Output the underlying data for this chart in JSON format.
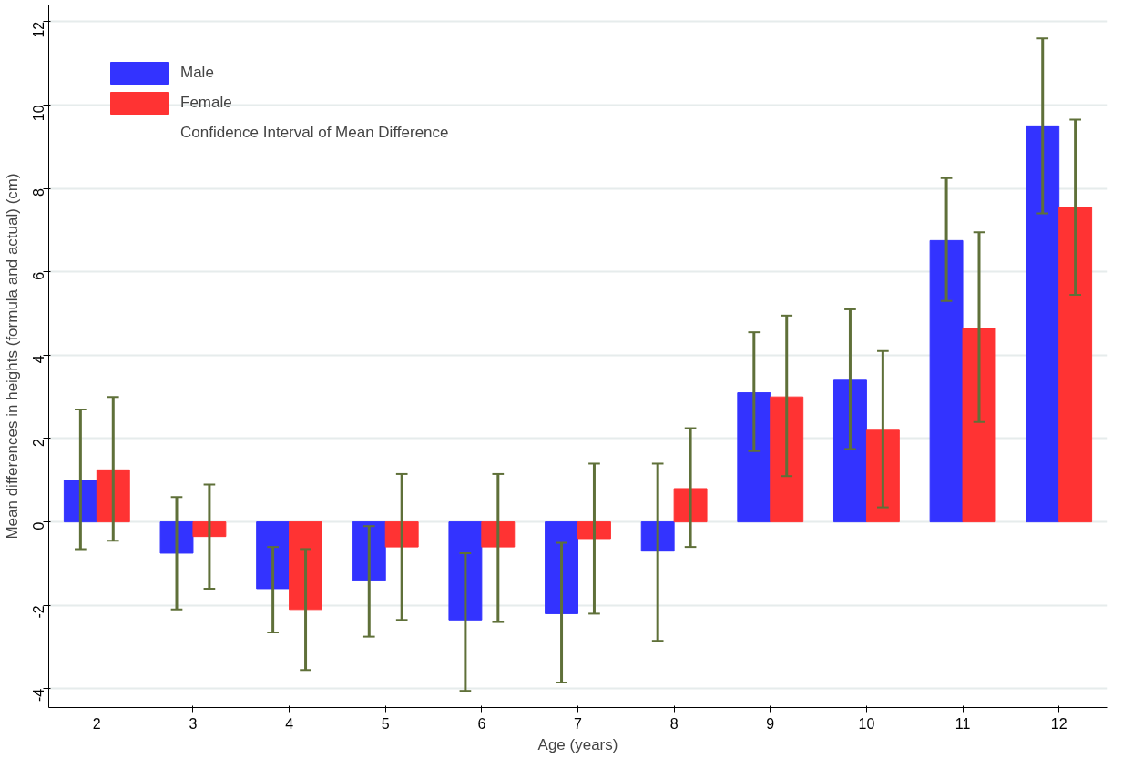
{
  "chart_data": {
    "type": "bar",
    "xlabel": "Age (years)",
    "ylabel": "Mean differences in heights (formula and actual) (cm)",
    "categories": [
      "2",
      "3",
      "4",
      "5",
      "6",
      "7",
      "8",
      "9",
      "10",
      "11",
      "12"
    ],
    "ylim": [
      -4.45,
      12.4
    ],
    "yticks": [
      -4,
      -2,
      0,
      2,
      4,
      6,
      8,
      10,
      12
    ],
    "grid": "y",
    "legend": "top left",
    "annotations": [
      "Confidence Interval of Mean Difference"
    ],
    "series": [
      {
        "name": "Male",
        "color": "#3333ff",
        "values": [
          1.0,
          -0.75,
          -1.6,
          -1.4,
          -2.35,
          -2.2,
          -0.7,
          3.1,
          3.4,
          6.75,
          9.5
        ],
        "errors": [
          [
            -0.65,
            2.7
          ],
          [
            -2.1,
            0.6
          ],
          [
            -2.65,
            -0.6
          ],
          [
            -2.75,
            -0.1
          ],
          [
            -4.05,
            -0.75
          ],
          [
            -3.85,
            -0.5
          ],
          [
            -2.85,
            1.4
          ],
          [
            1.7,
            4.55
          ],
          [
            1.75,
            5.1
          ],
          [
            5.3,
            8.25
          ],
          [
            7.4,
            11.6
          ]
        ]
      },
      {
        "name": "Female",
        "color": "#ff3333",
        "values": [
          1.25,
          -0.35,
          -2.1,
          -0.6,
          -0.6,
          -0.4,
          0.8,
          3.0,
          2.2,
          4.65,
          7.55
        ],
        "errors": [
          [
            -0.45,
            3.0
          ],
          [
            -1.6,
            0.9
          ],
          [
            -3.55,
            -0.65
          ],
          [
            -2.35,
            1.15
          ],
          [
            -2.4,
            1.15
          ],
          [
            -2.2,
            1.4
          ],
          [
            -0.6,
            2.25
          ],
          [
            1.1,
            4.95
          ],
          [
            0.35,
            4.1
          ],
          [
            2.4,
            6.95
          ],
          [
            5.45,
            9.65
          ]
        ]
      }
    ]
  }
}
